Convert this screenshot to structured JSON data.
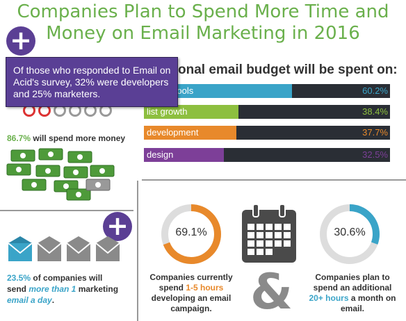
{
  "title_line1": "Companies Plan to Spend More Time and",
  "title_line2": "Money on Email Marketing in 2016",
  "tooltip_text": "Of those who responded to Email on Acid's survey, 32% were developers and 25% marketers.",
  "plus_symbol": "+",
  "budget_heading": "onal email budget will be spent on:",
  "bars": [
    {
      "label": "logy & tools",
      "value": "60.2%",
      "fraction": 0.602,
      "color": "#3aa4c8"
    },
    {
      "label": "list growth",
      "value": "38.4%",
      "fraction": 0.384,
      "color": "#8dbf3f"
    },
    {
      "label": "development",
      "value": "37.7%",
      "fraction": 0.377,
      "color": "#e8892b"
    },
    {
      "label": "design",
      "value": "32.5%",
      "fraction": 0.325,
      "color": "#7d3f98"
    }
  ],
  "spend_more": {
    "pct": "86.7%",
    "text": " will spend more money"
  },
  "email_stat": {
    "pct": "23.5%",
    "line1": " of companies will",
    "line2a": "send ",
    "line2b": "more than 1",
    "line2c": " marketing",
    "line3": "email a day",
    "line3end": "."
  },
  "donut1": {
    "value": "69.1%",
    "fraction": 0.691,
    "color": "#e8892b"
  },
  "donut2": {
    "value": "30.6%",
    "fraction": 0.306,
    "color": "#3aa4c8"
  },
  "stat1": {
    "l1": "Companies currently",
    "l2a": "spend ",
    "l2b": "1-5 hours",
    "l3": "developing an email",
    "l4": "campaign."
  },
  "stat2": {
    "l1": "Companies plan to",
    "l2": "spend an additional",
    "l3a": "20+ hours",
    "l3b": " a month on",
    "l4": "email."
  },
  "ampersand": "&",
  "colors": {
    "green": "#6ab04c",
    "purple": "#5b3f94",
    "orange": "#e8892b",
    "blue": "#3aa4c8"
  }
}
